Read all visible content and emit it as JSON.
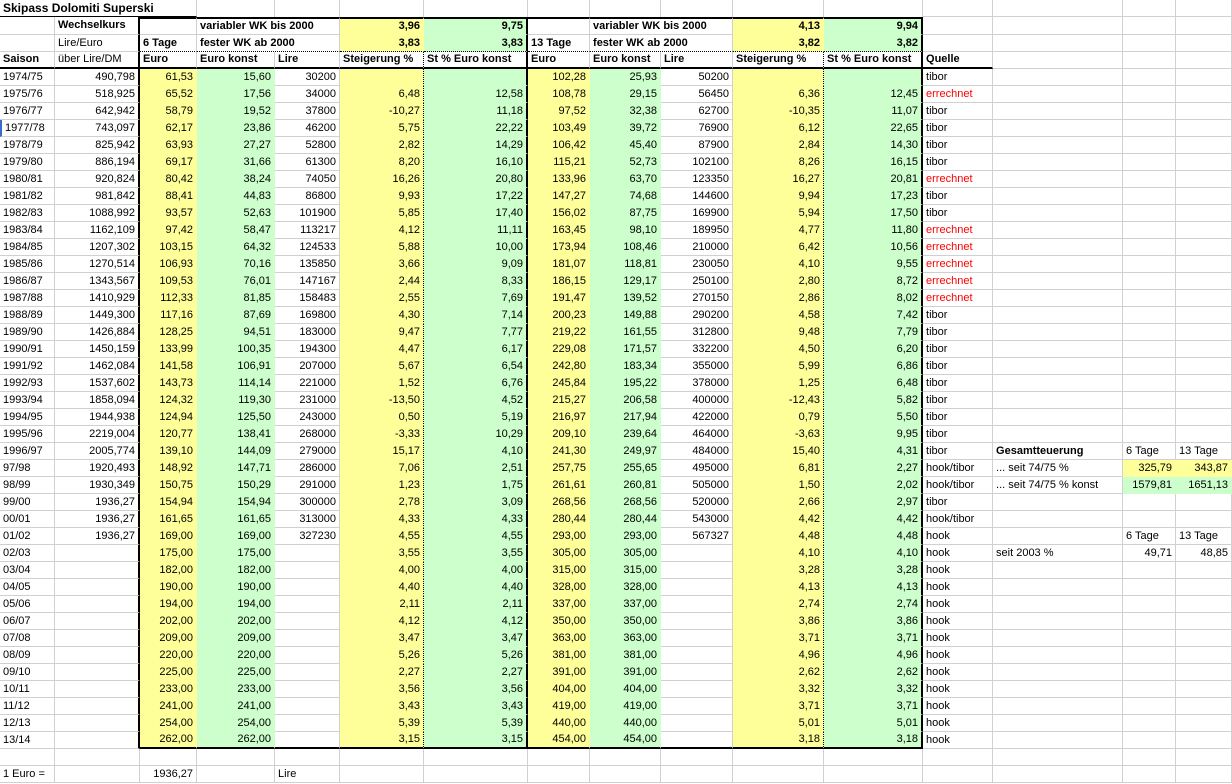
{
  "title": "Skipass Dolomiti Superski",
  "colors": {
    "highlight_yellow": "#FFFF99",
    "highlight_green": "#CCFFCC",
    "source_red": "#FF0000",
    "gridline": "#D0D0D0"
  },
  "header": {
    "wechselkurs_label": "Wechselkurs",
    "lire_euro_label": "Lire/Euro",
    "saison_label": "Saison",
    "ueber_label": "über Lire/DM",
    "quelle_label": "Quelle",
    "blocks": [
      {
        "tage": "6 Tage",
        "variabel_label": "variabler WK bis 2000",
        "variabel_st": "3,96",
        "variabel_stk": "9,75",
        "fest_label": "fester WK ab 2000",
        "fest_st": "3,83",
        "fest_stk": "3,83",
        "cols": [
          "Euro",
          "Euro konst",
          "Lire",
          "Steigerung %",
          "St % Euro konst"
        ]
      },
      {
        "tage": "13 Tage",
        "variabel_label": "variabler WK bis 2000",
        "variabel_st": "4,13",
        "variabel_stk": "9,94",
        "fest_label": "fester WK ab 2000",
        "fest_st": "3,82",
        "fest_stk": "3,82",
        "cols": [
          "Euro",
          "Euro konst",
          "Lire",
          "Steigerung %",
          "St % Euro konst"
        ]
      }
    ]
  },
  "rows": [
    {
      "saison": "1974/75",
      "lire_dm": "490,798",
      "t6": [
        "61,53",
        "15,60",
        "30200",
        "",
        ""
      ],
      "t13": [
        "102,28",
        "25,93",
        "50200",
        "",
        ""
      ],
      "quelle": "tibor",
      "quelle_red": false
    },
    {
      "saison": "1975/76",
      "lire_dm": "518,925",
      "t6": [
        "65,52",
        "17,56",
        "34000",
        "6,48",
        "12,58"
      ],
      "t13": [
        "108,78",
        "29,15",
        "56450",
        "6,36",
        "12,45"
      ],
      "quelle": "errechnet",
      "quelle_red": true
    },
    {
      "saison": "1976/77",
      "lire_dm": "642,942",
      "t6": [
        "58,79",
        "19,52",
        "37800",
        "-10,27",
        "11,18"
      ],
      "t13": [
        "97,52",
        "32,38",
        "62700",
        "-10,35",
        "11,07"
      ],
      "quelle": "tibor",
      "quelle_red": false
    },
    {
      "saison": "1977/78",
      "lire_dm": "743,097",
      "t6": [
        "62,17",
        "23,86",
        "46200",
        "5,75",
        "22,22"
      ],
      "t13": [
        "103,49",
        "39,72",
        "76900",
        "6,12",
        "22,65"
      ],
      "quelle": "tibor",
      "quelle_red": false
    },
    {
      "saison": "1978/79",
      "lire_dm": "825,942",
      "t6": [
        "63,93",
        "27,27",
        "52800",
        "2,82",
        "14,29"
      ],
      "t13": [
        "106,42",
        "45,40",
        "87900",
        "2,84",
        "14,30"
      ],
      "quelle": "tibor",
      "quelle_red": false
    },
    {
      "saison": "1979/80",
      "lire_dm": "886,194",
      "t6": [
        "69,17",
        "31,66",
        "61300",
        "8,20",
        "16,10"
      ],
      "t13": [
        "115,21",
        "52,73",
        "102100",
        "8,26",
        "16,15"
      ],
      "quelle": "tibor",
      "quelle_red": false
    },
    {
      "saison": "1980/81",
      "lire_dm": "920,824",
      "t6": [
        "80,42",
        "38,24",
        "74050",
        "16,26",
        "20,80"
      ],
      "t13": [
        "133,96",
        "63,70",
        "123350",
        "16,27",
        "20,81"
      ],
      "quelle": "errechnet",
      "quelle_red": true
    },
    {
      "saison": "1981/82",
      "lire_dm": "981,842",
      "t6": [
        "88,41",
        "44,83",
        "86800",
        "9,93",
        "17,22"
      ],
      "t13": [
        "147,27",
        "74,68",
        "144600",
        "9,94",
        "17,23"
      ],
      "quelle": "tibor",
      "quelle_red": false
    },
    {
      "saison": "1982/83",
      "lire_dm": "1088,992",
      "t6": [
        "93,57",
        "52,63",
        "101900",
        "5,85",
        "17,40"
      ],
      "t13": [
        "156,02",
        "87,75",
        "169900",
        "5,94",
        "17,50"
      ],
      "quelle": "tibor",
      "quelle_red": false
    },
    {
      "saison": "1983/84",
      "lire_dm": "1162,109",
      "t6": [
        "97,42",
        "58,47",
        "113217",
        "4,12",
        "11,11"
      ],
      "t13": [
        "163,45",
        "98,10",
        "189950",
        "4,77",
        "11,80"
      ],
      "quelle": "errechnet",
      "quelle_red": true
    },
    {
      "saison": "1984/85",
      "lire_dm": "1207,302",
      "t6": [
        "103,15",
        "64,32",
        "124533",
        "5,88",
        "10,00"
      ],
      "t13": [
        "173,94",
        "108,46",
        "210000",
        "6,42",
        "10,56"
      ],
      "quelle": "errechnet",
      "quelle_red": true
    },
    {
      "saison": "1985/86",
      "lire_dm": "1270,514",
      "t6": [
        "106,93",
        "70,16",
        "135850",
        "3,66",
        "9,09"
      ],
      "t13": [
        "181,07",
        "118,81",
        "230050",
        "4,10",
        "9,55"
      ],
      "quelle": "errechnet",
      "quelle_red": true
    },
    {
      "saison": "1986/87",
      "lire_dm": "1343,567",
      "t6": [
        "109,53",
        "76,01",
        "147167",
        "2,44",
        "8,33"
      ],
      "t13": [
        "186,15",
        "129,17",
        "250100",
        "2,80",
        "8,72"
      ],
      "quelle": "errechnet",
      "quelle_red": true
    },
    {
      "saison": "1987/88",
      "lire_dm": "1410,929",
      "t6": [
        "112,33",
        "81,85",
        "158483",
        "2,55",
        "7,69"
      ],
      "t13": [
        "191,47",
        "139,52",
        "270150",
        "2,86",
        "8,02"
      ],
      "quelle": "errechnet",
      "quelle_red": true
    },
    {
      "saison": "1988/89",
      "lire_dm": "1449,300",
      "t6": [
        "117,16",
        "87,69",
        "169800",
        "4,30",
        "7,14"
      ],
      "t13": [
        "200,23",
        "149,88",
        "290200",
        "4,58",
        "7,42"
      ],
      "quelle": "tibor",
      "quelle_red": false
    },
    {
      "saison": "1989/90",
      "lire_dm": "1426,884",
      "t6": [
        "128,25",
        "94,51",
        "183000",
        "9,47",
        "7,77"
      ],
      "t13": [
        "219,22",
        "161,55",
        "312800",
        "9,48",
        "7,79"
      ],
      "quelle": "tibor",
      "quelle_red": false
    },
    {
      "saison": "1990/91",
      "lire_dm": "1450,159",
      "t6": [
        "133,99",
        "100,35",
        "194300",
        "4,47",
        "6,17"
      ],
      "t13": [
        "229,08",
        "171,57",
        "332200",
        "4,50",
        "6,20"
      ],
      "quelle": "tibor",
      "quelle_red": false
    },
    {
      "saison": "1991/92",
      "lire_dm": "1462,084",
      "t6": [
        "141,58",
        "106,91",
        "207000",
        "5,67",
        "6,54"
      ],
      "t13": [
        "242,80",
        "183,34",
        "355000",
        "5,99",
        "6,86"
      ],
      "quelle": "tibor",
      "quelle_red": false
    },
    {
      "saison": "1992/93",
      "lire_dm": "1537,602",
      "t6": [
        "143,73",
        "114,14",
        "221000",
        "1,52",
        "6,76"
      ],
      "t13": [
        "245,84",
        "195,22",
        "378000",
        "1,25",
        "6,48"
      ],
      "quelle": "tibor",
      "quelle_red": false
    },
    {
      "saison": "1993/94",
      "lire_dm": "1858,094",
      "t6": [
        "124,32",
        "119,30",
        "231000",
        "-13,50",
        "4,52"
      ],
      "t13": [
        "215,27",
        "206,58",
        "400000",
        "-12,43",
        "5,82"
      ],
      "quelle": "tibor",
      "quelle_red": false
    },
    {
      "saison": "1994/95",
      "lire_dm": "1944,938",
      "t6": [
        "124,94",
        "125,50",
        "243000",
        "0,50",
        "5,19"
      ],
      "t13": [
        "216,97",
        "217,94",
        "422000",
        "0,79",
        "5,50"
      ],
      "quelle": "tibor",
      "quelle_red": false
    },
    {
      "saison": "1995/96",
      "lire_dm": "2219,004",
      "t6": [
        "120,77",
        "138,41",
        "268000",
        "-3,33",
        "10,29"
      ],
      "t13": [
        "209,10",
        "239,64",
        "464000",
        "-3,63",
        "9,95"
      ],
      "quelle": "tibor",
      "quelle_red": false
    },
    {
      "saison": "1996/97",
      "lire_dm": "2005,774",
      "t6": [
        "139,10",
        "144,09",
        "279000",
        "15,17",
        "4,10"
      ],
      "t13": [
        "241,30",
        "249,97",
        "484000",
        "15,40",
        "4,31"
      ],
      "quelle": "tibor",
      "quelle_red": false
    },
    {
      "saison": "97/98",
      "lire_dm": "1920,493",
      "t6": [
        "148,92",
        "147,71",
        "286000",
        "7,06",
        "2,51"
      ],
      "t13": [
        "257,75",
        "255,65",
        "495000",
        "6,81",
        "2,27"
      ],
      "quelle": "hook/tibor",
      "quelle_red": false
    },
    {
      "saison": "98/99",
      "lire_dm": "1930,349",
      "t6": [
        "150,75",
        "150,29",
        "291000",
        "1,23",
        "1,75"
      ],
      "t13": [
        "261,61",
        "260,81",
        "505000",
        "1,50",
        "2,02"
      ],
      "quelle": "hook/tibor",
      "quelle_red": false
    },
    {
      "saison": "99/00",
      "lire_dm": "1936,27",
      "t6": [
        "154,94",
        "154,94",
        "300000",
        "2,78",
        "3,09"
      ],
      "t13": [
        "268,56",
        "268,56",
        "520000",
        "2,66",
        "2,97"
      ],
      "quelle": "tibor",
      "quelle_red": false
    },
    {
      "saison": "00/01",
      "lire_dm": "1936,27",
      "t6": [
        "161,65",
        "161,65",
        "313000",
        "4,33",
        "4,33"
      ],
      "t13": [
        "280,44",
        "280,44",
        "543000",
        "4,42",
        "4,42"
      ],
      "quelle": "hook/tibor",
      "quelle_red": false
    },
    {
      "saison": "01/02",
      "lire_dm": "1936,27",
      "t6": [
        "169,00",
        "169,00",
        "327230",
        "4,55",
        "4,55"
      ],
      "t13": [
        "293,00",
        "293,00",
        "567327",
        "4,48",
        "4,48"
      ],
      "quelle": "hook",
      "quelle_red": false
    },
    {
      "saison": "02/03",
      "lire_dm": "",
      "t6": [
        "175,00",
        "175,00",
        "",
        "3,55",
        "3,55"
      ],
      "t13": [
        "305,00",
        "305,00",
        "",
        "4,10",
        "4,10"
      ],
      "quelle": "hook",
      "quelle_red": false
    },
    {
      "saison": "03/04",
      "lire_dm": "",
      "t6": [
        "182,00",
        "182,00",
        "",
        "4,00",
        "4,00"
      ],
      "t13": [
        "315,00",
        "315,00",
        "",
        "3,28",
        "3,28"
      ],
      "quelle": "hook",
      "quelle_red": false
    },
    {
      "saison": "04/05",
      "lire_dm": "",
      "t6": [
        "190,00",
        "190,00",
        "",
        "4,40",
        "4,40"
      ],
      "t13": [
        "328,00",
        "328,00",
        "",
        "4,13",
        "4,13"
      ],
      "quelle": "hook",
      "quelle_red": false
    },
    {
      "saison": "05/06",
      "lire_dm": "",
      "t6": [
        "194,00",
        "194,00",
        "",
        "2,11",
        "2,11"
      ],
      "t13": [
        "337,00",
        "337,00",
        "",
        "2,74",
        "2,74"
      ],
      "quelle": "hook",
      "quelle_red": false
    },
    {
      "saison": "06/07",
      "lire_dm": "",
      "t6": [
        "202,00",
        "202,00",
        "",
        "4,12",
        "4,12"
      ],
      "t13": [
        "350,00",
        "350,00",
        "",
        "3,86",
        "3,86"
      ],
      "quelle": "hook",
      "quelle_red": false
    },
    {
      "saison": "07/08",
      "lire_dm": "",
      "t6": [
        "209,00",
        "209,00",
        "",
        "3,47",
        "3,47"
      ],
      "t13": [
        "363,00",
        "363,00",
        "",
        "3,71",
        "3,71"
      ],
      "quelle": "hook",
      "quelle_red": false
    },
    {
      "saison": "08/09",
      "lire_dm": "",
      "t6": [
        "220,00",
        "220,00",
        "",
        "5,26",
        "5,26"
      ],
      "t13": [
        "381,00",
        "381,00",
        "",
        "4,96",
        "4,96"
      ],
      "quelle": "hook",
      "quelle_red": false
    },
    {
      "saison": "09/10",
      "lire_dm": "",
      "t6": [
        "225,00",
        "225,00",
        "",
        "2,27",
        "2,27"
      ],
      "t13": [
        "391,00",
        "391,00",
        "",
        "2,62",
        "2,62"
      ],
      "quelle": "hook",
      "quelle_red": false
    },
    {
      "saison": "10/11",
      "lire_dm": "",
      "t6": [
        "233,00",
        "233,00",
        "",
        "3,56",
        "3,56"
      ],
      "t13": [
        "404,00",
        "404,00",
        "",
        "3,32",
        "3,32"
      ],
      "quelle": "hook",
      "quelle_red": false
    },
    {
      "saison": "11/12",
      "lire_dm": "",
      "t6": [
        "241,00",
        "241,00",
        "",
        "3,43",
        "3,43"
      ],
      "t13": [
        "419,00",
        "419,00",
        "",
        "3,71",
        "3,71"
      ],
      "quelle": "hook",
      "quelle_red": false
    },
    {
      "saison": "12/13",
      "lire_dm": "",
      "t6": [
        "254,00",
        "254,00",
        "",
        "5,39",
        "5,39"
      ],
      "t13": [
        "440,00",
        "440,00",
        "",
        "5,01",
        "5,01"
      ],
      "quelle": "hook",
      "quelle_red": false
    },
    {
      "saison": "13/14",
      "lire_dm": "",
      "t6": [
        "262,00",
        "262,00",
        "",
        "3,15",
        "3,15"
      ],
      "t13": [
        "454,00",
        "454,00",
        "",
        "3,18",
        "3,18"
      ],
      "quelle": "hook",
      "quelle_red": false
    }
  ],
  "annotations": {
    "gesamt": {
      "title": "Gesamtteuerung",
      "col6": "6 Tage",
      "col13": "13 Tage",
      "seit_label": "... seit 74/75 %",
      "seit_6t": "325,79",
      "seit_13t": "343,87",
      "konst_label": "... seit 74/75 % konst",
      "konst_6t": "1579,81",
      "konst_13t": "1651,13"
    },
    "seit2003": {
      "col6": "6 Tage",
      "col13": "13 Tage",
      "label": "seit 2003 %",
      "v6": "49,71",
      "v13": "48,85"
    }
  },
  "footer": {
    "label": "1 Euro =",
    "value": "1936,27",
    "unit": "Lire"
  }
}
